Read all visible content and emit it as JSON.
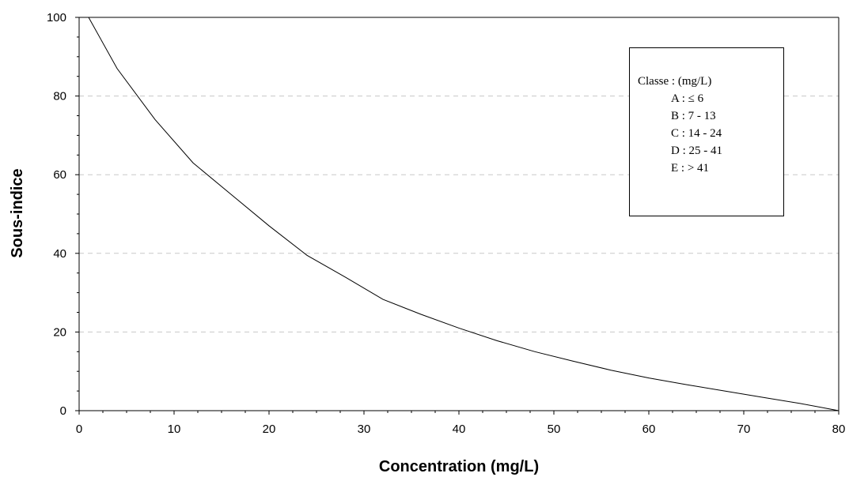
{
  "chart_data": {
    "type": "line",
    "title": "",
    "xlabel": "Concentration (mg/L)",
    "ylabel": "Sous-indice",
    "xlim": [
      0,
      80
    ],
    "ylim": [
      0,
      100
    ],
    "x_ticks": [
      0,
      10,
      20,
      30,
      40,
      50,
      60,
      70,
      80
    ],
    "y_ticks": [
      0,
      20,
      40,
      60,
      80,
      100
    ],
    "grid": "horizontal dashed",
    "legend_position": "top-right",
    "series": [
      {
        "x": [
          1,
          4,
          8,
          12,
          16,
          20,
          24,
          28,
          32,
          36,
          40,
          44,
          48,
          52,
          56,
          60,
          64,
          68,
          72,
          76,
          80
        ],
        "values": [
          100,
          87,
          74,
          63,
          55,
          47,
          39.5,
          34,
          28.3,
          24.5,
          21,
          17.8,
          15,
          12.6,
          10.3,
          8.3,
          6.6,
          5,
          3.4,
          1.8,
          0
        ]
      }
    ],
    "legend": {
      "title": "Classe : (mg/L)",
      "items": [
        "A : ≤ 6",
        "B : 7 - 13",
        "C : 14 - 24",
        "D : 25 - 41",
        "E : > 41"
      ]
    }
  }
}
